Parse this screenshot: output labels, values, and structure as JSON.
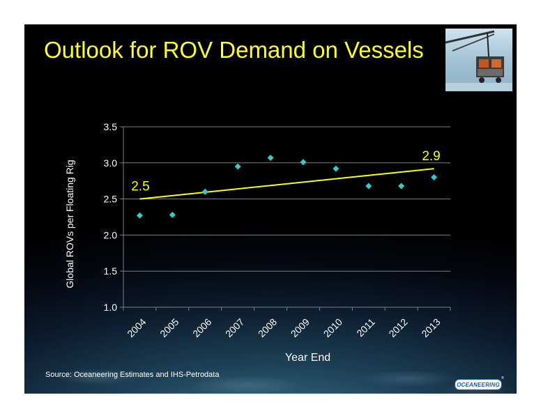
{
  "slide": {
    "title": "Outlook for ROV Demand on Vessels",
    "source": "Source:   Oceaneering Estimates and IHS-Petrodata",
    "logo": "OCEANEERING",
    "logo_mark": "®"
  },
  "colors": {
    "title": "#ffff33",
    "marker": "#33cccc",
    "trendline": "#ffff00",
    "axis_text": "#ffffff",
    "gridline": "#7f7f7f"
  },
  "chart_data": {
    "type": "scatter",
    "xlabel": "Year End",
    "ylabel": "Global ROVs per Floating Rig",
    "categories": [
      "2004",
      "2005",
      "2006",
      "2007",
      "2008",
      "2009",
      "2010",
      "2011",
      "2012",
      "2013"
    ],
    "ylim": [
      1.0,
      3.5
    ],
    "yticks": [
      "1.0",
      "1.5",
      "2.0",
      "2.5",
      "3.0",
      "3.5"
    ],
    "grid": true,
    "series": [
      {
        "values": [
          2.27,
          2.28,
          2.6,
          2.95,
          3.07,
          3.01,
          2.92,
          2.68,
          2.68,
          2.8
        ]
      }
    ],
    "trendline": {
      "start": 2.5,
      "end": 2.92
    },
    "annotations": [
      {
        "text": "2.5",
        "category": "2004"
      },
      {
        "text": "2.9",
        "category": "2013"
      }
    ]
  }
}
